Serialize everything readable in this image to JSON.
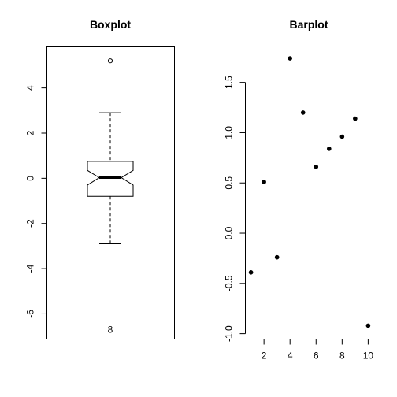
{
  "chart_data": [
    {
      "type": "box",
      "title": "Boxplot",
      "xlabel": "",
      "ylabel": "",
      "ylim": [
        -7.1,
        5.8
      ],
      "yticks": [
        -6,
        -4,
        -2,
        0,
        2,
        4
      ],
      "yticklabels": [
        "-6",
        "-4",
        "-2",
        "0",
        "2",
        "4"
      ],
      "notched": true,
      "stats": {
        "whisker_low": -2.9,
        "q1": -0.8,
        "notch_low": -0.3,
        "median": 0.03,
        "notch_high": 0.35,
        "q3": 0.75,
        "whisker_high": 2.9
      },
      "outliers": [
        {
          "y": 5.2,
          "marker": "circle",
          "label": ""
        },
        {
          "y": -6.7,
          "marker": "text",
          "label": "8"
        }
      ]
    },
    {
      "type": "scatter",
      "title": "Barplot",
      "xlabel": "",
      "ylabel": "",
      "xlim": [
        0.6,
        10.4
      ],
      "ylim": [
        -1.05,
        1.85
      ],
      "xticks": [
        2,
        4,
        6,
        8,
        10
      ],
      "xticklabels": [
        "2",
        "4",
        "6",
        "8",
        "10"
      ],
      "yticks": [
        -1.0,
        -0.5,
        0.0,
        0.5,
        1.0,
        1.5
      ],
      "yticklabels": [
        "-1.0",
        "-0.5",
        "0.0",
        "0.5",
        "1.0",
        "1.5"
      ],
      "x": [
        1,
        2,
        3,
        4,
        5,
        6,
        7,
        8,
        9,
        10
      ],
      "y": [
        -0.39,
        0.51,
        -0.24,
        1.74,
        1.2,
        0.66,
        0.84,
        0.96,
        1.14,
        -0.92
      ]
    }
  ]
}
